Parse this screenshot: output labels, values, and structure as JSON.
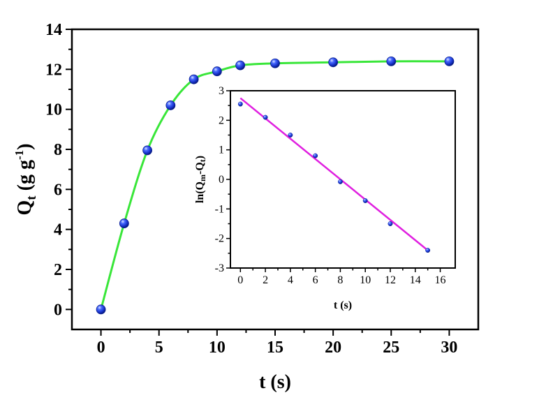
{
  "chart_data": [
    {
      "type": "line",
      "panel": "main",
      "xlabel": "t (s)",
      "ylabel": "Qt (g g-1)",
      "ylabel_parts": {
        "main": "Q",
        "sub": "t",
        "rest": " (g g",
        "sup": "-1",
        "close": ")"
      },
      "xlim": [
        -2.5,
        32.5
      ],
      "ylim": [
        -1,
        14
      ],
      "xticks": [
        0,
        5,
        10,
        15,
        20,
        25,
        30
      ],
      "yticks": [
        0,
        2,
        4,
        6,
        8,
        10,
        12,
        14
      ],
      "xtick_labels": [
        "0",
        "5",
        "10",
        "15",
        "20",
        "25",
        "30"
      ],
      "ytick_labels": [
        "0",
        "2",
        "4",
        "6",
        "8",
        "10",
        "12",
        "14"
      ],
      "grid": false,
      "series": [
        {
          "marker_color": "#1f3fd6",
          "line_color": "#39e639",
          "x": [
            0,
            2,
            4,
            6,
            8,
            10,
            12,
            15,
            20,
            25,
            30
          ],
          "y": [
            0.0,
            4.3,
            7.95,
            10.2,
            11.5,
            11.9,
            12.2,
            12.3,
            12.35,
            12.4,
            12.4
          ]
        }
      ]
    },
    {
      "type": "scatter",
      "panel": "inset",
      "xlabel": "t (s)",
      "ylabel": "ln(Qm-Qt)",
      "ylabel_parts": {
        "pre": "ln(Q",
        "sub1": "m",
        "mid": "-Q",
        "sub2": "t",
        "close": ")"
      },
      "xlim": [
        -0.8,
        17.2
      ],
      "ylim": [
        -3,
        3
      ],
      "xticks": [
        0,
        2,
        4,
        6,
        8,
        10,
        12,
        14,
        16
      ],
      "yticks": [
        -3,
        -2,
        -1,
        0,
        1,
        2,
        3
      ],
      "xtick_labels": [
        "0",
        "2",
        "4",
        "6",
        "8",
        "10",
        "12",
        "14",
        "16"
      ],
      "ytick_labels": [
        "-3",
        "-2",
        "-1",
        "0",
        "1",
        "2",
        "3"
      ],
      "grid": false,
      "series": [
        {
          "marker_color": "#1f3fd6",
          "x": [
            0,
            2,
            4,
            6,
            8,
            10,
            12,
            15
          ],
          "y": [
            2.55,
            2.1,
            1.5,
            0.8,
            -0.08,
            -0.72,
            -1.5,
            -2.4
          ]
        }
      ],
      "fit_line": {
        "color": "#e020e0",
        "x": [
          0,
          15
        ],
        "y": [
          2.75,
          -2.4
        ]
      }
    }
  ]
}
